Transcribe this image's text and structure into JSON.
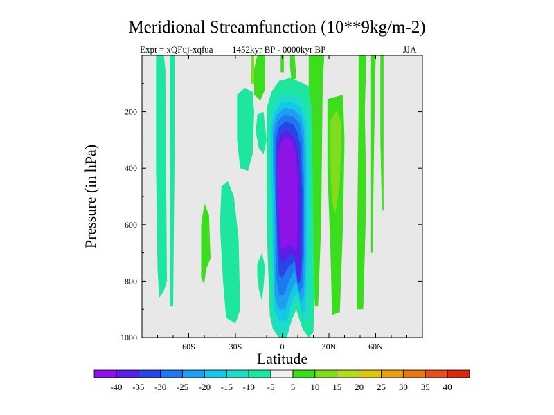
{
  "chart_data": {
    "type": "contour",
    "title": "Meridional Streamfunction (10**9kg/m-2)",
    "subtitle": "1452kyr BP - 0000kyr BP",
    "left_string": "Expt = xQFuj-xqfua",
    "right_string": "JJA",
    "xlabel": "Latitude",
    "ylabel": "Pressure (in hPa)",
    "xlim": [
      -90,
      90
    ],
    "ylim": [
      1000,
      0
    ],
    "x_ticks": [
      {
        "value": -60,
        "label": "60S"
      },
      {
        "value": -30,
        "label": "30S"
      },
      {
        "value": 0,
        "label": "0"
      },
      {
        "value": 30,
        "label": "30N"
      },
      {
        "value": 60,
        "label": "60N"
      }
    ],
    "y_ticks": [
      {
        "value": 200,
        "label": "200"
      },
      {
        "value": 400,
        "label": "400"
      },
      {
        "value": 600,
        "label": "600"
      },
      {
        "value": 800,
        "label": "800"
      },
      {
        "value": 1000,
        "label": "1000"
      }
    ],
    "background_color": "#e8e8e8",
    "colorbar": {
      "labels": [
        "-40",
        "-35",
        "-30",
        "-25",
        "-20",
        "-15",
        "-10",
        "-5",
        "5",
        "10",
        "15",
        "20",
        "25",
        "30",
        "35",
        "40"
      ],
      "colors": [
        "#8c14e6",
        "#5a1ee6",
        "#2846e6",
        "#1e78f0",
        "#1ea0f0",
        "#14c8e6",
        "#1edcc8",
        "#1ee6a0",
        "#f0f0f0",
        "#3cdc1e",
        "#82dc1e",
        "#b4dc1e",
        "#dcc814",
        "#e6a014",
        "#e67814",
        "#e6501e",
        "#dc280a"
      ]
    },
    "regions": [
      {
        "level": -5,
        "color": "#1ee6a0",
        "points": [
          [
            -81,
            0
          ],
          [
            -76,
            0
          ],
          [
            -75,
            50
          ],
          [
            -74,
            800
          ],
          [
            -76,
            835
          ],
          [
            -79,
            860
          ],
          [
            -80,
            760
          ],
          [
            -81,
            400
          ]
        ]
      },
      {
        "level": -5,
        "color": "#1ee6a0",
        "points": [
          [
            -72,
            0
          ],
          [
            -69,
            0
          ],
          [
            -69,
            300
          ],
          [
            -70,
            890
          ],
          [
            -72,
            890
          ],
          [
            -72,
            400
          ]
        ]
      },
      {
        "level": -5,
        "color": "#1ee6a0",
        "points": [
          [
            -39,
            465
          ],
          [
            -35,
            445
          ],
          [
            -31,
            500
          ],
          [
            -28,
            650
          ],
          [
            -27,
            900
          ],
          [
            -30,
            950
          ],
          [
            -36,
            930
          ],
          [
            -38,
            800
          ],
          [
            -40,
            600
          ]
        ]
      },
      {
        "level": -5,
        "color": "#1ee6a0",
        "points": [
          [
            -29,
            140
          ],
          [
            -24,
            115
          ],
          [
            -19,
            130
          ],
          [
            -18,
            200
          ],
          [
            -19,
            350
          ],
          [
            -22,
            410
          ],
          [
            -27,
            400
          ],
          [
            -29,
            300
          ]
        ]
      },
      {
        "level": -5,
        "color": "#1ee6a0",
        "points": [
          [
            -16,
            210
          ],
          [
            -12,
            200
          ],
          [
            -10,
            300
          ],
          [
            -12,
            350
          ],
          [
            -15,
            330
          ],
          [
            -17,
            270
          ]
        ]
      },
      {
        "level": -5,
        "color": "#1ee6a0",
        "points": [
          [
            -16,
            740
          ],
          [
            -13,
            700
          ],
          [
            -11,
            750
          ],
          [
            -12,
            820
          ],
          [
            -13,
            870
          ],
          [
            -15,
            830
          ],
          [
            -16,
            780
          ]
        ]
      },
      {
        "level": -5,
        "color": "#1ee6a0",
        "points": [
          [
            -10,
            190
          ],
          [
            -7,
            130
          ],
          [
            -2,
            90
          ],
          [
            5,
            80
          ],
          [
            12,
            95
          ],
          [
            17,
            110
          ],
          [
            20,
            170
          ],
          [
            22,
            400
          ],
          [
            22,
            700
          ],
          [
            20,
            980
          ],
          [
            17,
            1000
          ],
          [
            13,
            970
          ],
          [
            9,
            900
          ],
          [
            6,
            940
          ],
          [
            3,
            1000
          ],
          [
            -2,
            1000
          ],
          [
            -6,
            970
          ],
          [
            -8,
            920
          ],
          [
            -10,
            600
          ],
          [
            -10,
            300
          ]
        ]
      },
      {
        "level": 5,
        "color": "#3cdc1e",
        "points": [
          [
            -52,
            600
          ],
          [
            -50,
            525
          ],
          [
            -47,
            565
          ],
          [
            -46,
            720
          ],
          [
            -49,
            760
          ],
          [
            -50,
            810
          ],
          [
            -52,
            790
          ],
          [
            -52,
            700
          ]
        ]
      },
      {
        "level": 5,
        "color": "#3cdc1e",
        "points": [
          [
            -18,
            50
          ],
          [
            -16,
            0
          ],
          [
            -11,
            0
          ],
          [
            -11,
            120
          ],
          [
            -14,
            160
          ],
          [
            -18,
            140
          ]
        ]
      },
      {
        "level": 5,
        "color": "#3cdc1e",
        "points": [
          [
            -1,
            0
          ],
          [
            1,
            0
          ],
          [
            1,
            60
          ],
          [
            -1,
            60
          ]
        ]
      },
      {
        "level": 5,
        "color": "#3cdc1e",
        "points": [
          [
            5,
            0
          ],
          [
            8,
            0
          ],
          [
            9,
            80
          ],
          [
            6,
            90
          ],
          [
            5,
            40
          ]
        ]
      },
      {
        "level": 5,
        "color": "#3cdc1e",
        "points": [
          [
            17,
            0
          ],
          [
            27,
            0
          ],
          [
            26,
            100
          ],
          [
            25,
            600
          ],
          [
            23,
            890
          ],
          [
            21,
            890
          ],
          [
            20,
            600
          ],
          [
            19,
            200
          ],
          [
            17,
            110
          ]
        ]
      },
      {
        "level": 5,
        "color": "#3cdc1e",
        "points": [
          [
            29,
            155
          ],
          [
            39,
            140
          ],
          [
            40,
            300
          ],
          [
            39,
            600
          ],
          [
            37,
            910
          ],
          [
            32,
            920
          ],
          [
            31,
            700
          ],
          [
            29,
            400
          ]
        ]
      },
      {
        "level": 5,
        "color": "#3cdc1e",
        "points": [
          [
            49,
            0
          ],
          [
            54,
            0
          ],
          [
            53,
            200
          ],
          [
            54,
            500
          ],
          [
            53,
            700
          ],
          [
            52,
            900
          ],
          [
            48,
            900
          ],
          [
            48,
            700
          ],
          [
            49,
            200
          ]
        ]
      },
      {
        "level": 5,
        "color": "#3cdc1e",
        "points": [
          [
            57,
            0
          ],
          [
            60,
            0
          ],
          [
            59,
            300
          ],
          [
            58,
            700
          ],
          [
            57,
            700
          ],
          [
            57,
            300
          ]
        ]
      },
      {
        "level": 5,
        "color": "#3cdc1e",
        "points": [
          [
            63,
            0
          ],
          [
            65,
            0
          ],
          [
            65,
            550
          ],
          [
            64,
            550
          ],
          [
            63,
            300
          ]
        ]
      },
      {
        "level": 10,
        "color": "#82dc1e",
        "points": [
          [
            -20,
            0
          ],
          [
            -18,
            0
          ],
          [
            -18,
            100
          ],
          [
            -20,
            100
          ]
        ]
      },
      {
        "level": 10,
        "color": "#82dc1e",
        "points": [
          [
            31,
            230
          ],
          [
            35,
            195
          ],
          [
            38,
            240
          ],
          [
            37,
            450
          ],
          [
            34,
            560
          ],
          [
            32,
            520
          ],
          [
            31,
            400
          ]
        ]
      },
      {
        "level": -10,
        "color": "#1edcc8",
        "points": [
          [
            -8,
            230
          ],
          [
            -6,
            170
          ],
          [
            -2,
            140
          ],
          [
            5,
            135
          ],
          [
            12,
            150
          ],
          [
            16,
            200
          ],
          [
            18,
            400
          ],
          [
            18,
            700
          ],
          [
            17,
            940
          ],
          [
            14,
            950
          ],
          [
            10,
            860
          ],
          [
            7,
            900
          ],
          [
            3,
            990
          ],
          [
            -2,
            990
          ],
          [
            -6,
            950
          ],
          [
            -7,
            700
          ],
          [
            -8,
            400
          ]
        ]
      },
      {
        "level": -15,
        "color": "#14c8e6",
        "points": [
          [
            -7,
            250
          ],
          [
            -5,
            200
          ],
          [
            0,
            165
          ],
          [
            6,
            165
          ],
          [
            12,
            185
          ],
          [
            15,
            240
          ],
          [
            16,
            400
          ],
          [
            16,
            700
          ],
          [
            15,
            900
          ],
          [
            13,
            920
          ],
          [
            10,
            840
          ],
          [
            7,
            860
          ],
          [
            3,
            940
          ],
          [
            -2,
            940
          ],
          [
            -5,
            900
          ],
          [
            -6,
            700
          ],
          [
            -7,
            400
          ]
        ]
      },
      {
        "level": -20,
        "color": "#1ea0f0",
        "points": [
          [
            -6,
            260
          ],
          [
            -4,
            215
          ],
          [
            1,
            185
          ],
          [
            7,
            190
          ],
          [
            12,
            215
          ],
          [
            14,
            270
          ],
          [
            15,
            450
          ],
          [
            15,
            700
          ],
          [
            14,
            850
          ],
          [
            12,
            880
          ],
          [
            9,
            800
          ],
          [
            6,
            830
          ],
          [
            2,
            900
          ],
          [
            -2,
            900
          ],
          [
            -5,
            850
          ],
          [
            -5,
            600
          ],
          [
            -6,
            400
          ]
        ]
      },
      {
        "level": -25,
        "color": "#1e78f0",
        "points": [
          [
            -5,
            280
          ],
          [
            -3,
            235
          ],
          [
            1,
            210
          ],
          [
            7,
            215
          ],
          [
            11,
            240
          ],
          [
            13,
            300
          ],
          [
            14,
            450
          ],
          [
            14,
            700
          ],
          [
            13,
            820
          ],
          [
            11,
            840
          ],
          [
            8,
            760
          ],
          [
            5,
            790
          ],
          [
            1,
            850
          ],
          [
            -2,
            850
          ],
          [
            -4,
            780
          ],
          [
            -4,
            600
          ],
          [
            -5,
            400
          ]
        ]
      },
      {
        "level": -30,
        "color": "#2846e6",
        "points": [
          [
            -4,
            300
          ],
          [
            -2,
            255
          ],
          [
            2,
            235
          ],
          [
            7,
            245
          ],
          [
            10,
            275
          ],
          [
            12,
            330
          ],
          [
            13,
            480
          ],
          [
            13,
            700
          ],
          [
            12,
            800
          ],
          [
            10,
            810
          ],
          [
            8,
            730
          ],
          [
            4,
            750
          ],
          [
            0,
            790
          ],
          [
            -2,
            780
          ],
          [
            -3,
            700
          ],
          [
            -4,
            500
          ]
        ]
      },
      {
        "level": -35,
        "color": "#5a1ee6",
        "points": [
          [
            -3,
            320
          ],
          [
            -1,
            280
          ],
          [
            3,
            265
          ],
          [
            6,
            280
          ],
          [
            9,
            310
          ],
          [
            11,
            380
          ],
          [
            12,
            520
          ],
          [
            12,
            720
          ],
          [
            11,
            790
          ],
          [
            10,
            800
          ],
          [
            9,
            730
          ],
          [
            6,
            700
          ],
          [
            3,
            720
          ],
          [
            0,
            740
          ],
          [
            -2,
            700
          ],
          [
            -3,
            500
          ]
        ]
      },
      {
        "level": -40,
        "color": "#8c14e6",
        "points": [
          [
            -3,
            350
          ],
          [
            0,
            300
          ],
          [
            3,
            290
          ],
          [
            6,
            300
          ],
          [
            8,
            330
          ],
          [
            10,
            420
          ],
          [
            10,
            600
          ],
          [
            9,
            700
          ],
          [
            7,
            680
          ],
          [
            4,
            670
          ],
          [
            1,
            690
          ],
          [
            -1,
            680
          ],
          [
            -2,
            600
          ],
          [
            -3,
            450
          ]
        ]
      }
    ]
  }
}
